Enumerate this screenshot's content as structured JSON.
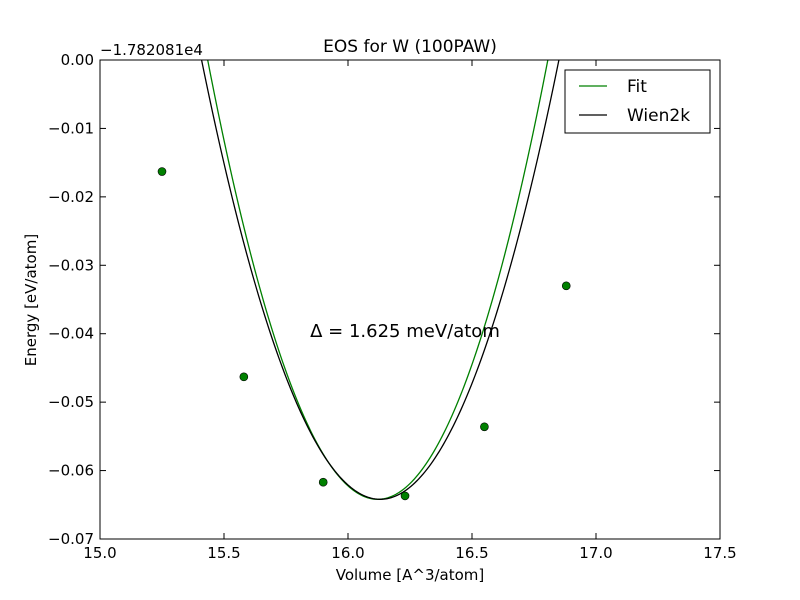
{
  "chart_data": {
    "type": "line",
    "title": "EOS for W (100PAW)",
    "xlabel": "Volume [A^3/atom]",
    "ylabel": "Energy [eV/atom]",
    "y_offset_label": "−1.782081e4",
    "xlim": [
      15.0,
      17.5
    ],
    "ylim": [
      -0.07,
      0.0
    ],
    "x_ticks": [
      15.0,
      15.5,
      16.0,
      16.5,
      17.0,
      17.5
    ],
    "x_tick_labels": [
      "15.0",
      "15.5",
      "16.0",
      "16.5",
      "17.0",
      "17.5"
    ],
    "y_ticks": [
      0.0,
      -0.01,
      -0.02,
      -0.03,
      -0.04,
      -0.05,
      -0.06,
      -0.07
    ],
    "y_tick_labels": [
      "0.00",
      "−0.01",
      "−0.02",
      "−0.03",
      "−0.04",
      "−0.05",
      "−0.06",
      "−0.07"
    ],
    "grid": false,
    "legend_position": "top-right",
    "annotation": "Δ = 1.625 meV/atom",
    "series": [
      {
        "name": "Fit",
        "color": "#008000",
        "curve": {
          "v0": 16.12,
          "emin": -0.0642,
          "curvature": 0.1365,
          "x_start": 15.25,
          "x_end": 17.2
        }
      },
      {
        "name": "Wien2k",
        "color": "#000000",
        "curve": {
          "v0": 16.13,
          "emin": -0.0642,
          "curvature": 0.1237,
          "x_start": 15.26,
          "x_end": 17.2
        }
      }
    ],
    "points": {
      "color": "#008000",
      "x": [
        15.25,
        15.58,
        15.9,
        16.23,
        16.55,
        16.88
      ],
      "y": [
        -0.0163,
        -0.0463,
        -0.0617,
        -0.0637,
        -0.0536,
        -0.033
      ]
    }
  }
}
